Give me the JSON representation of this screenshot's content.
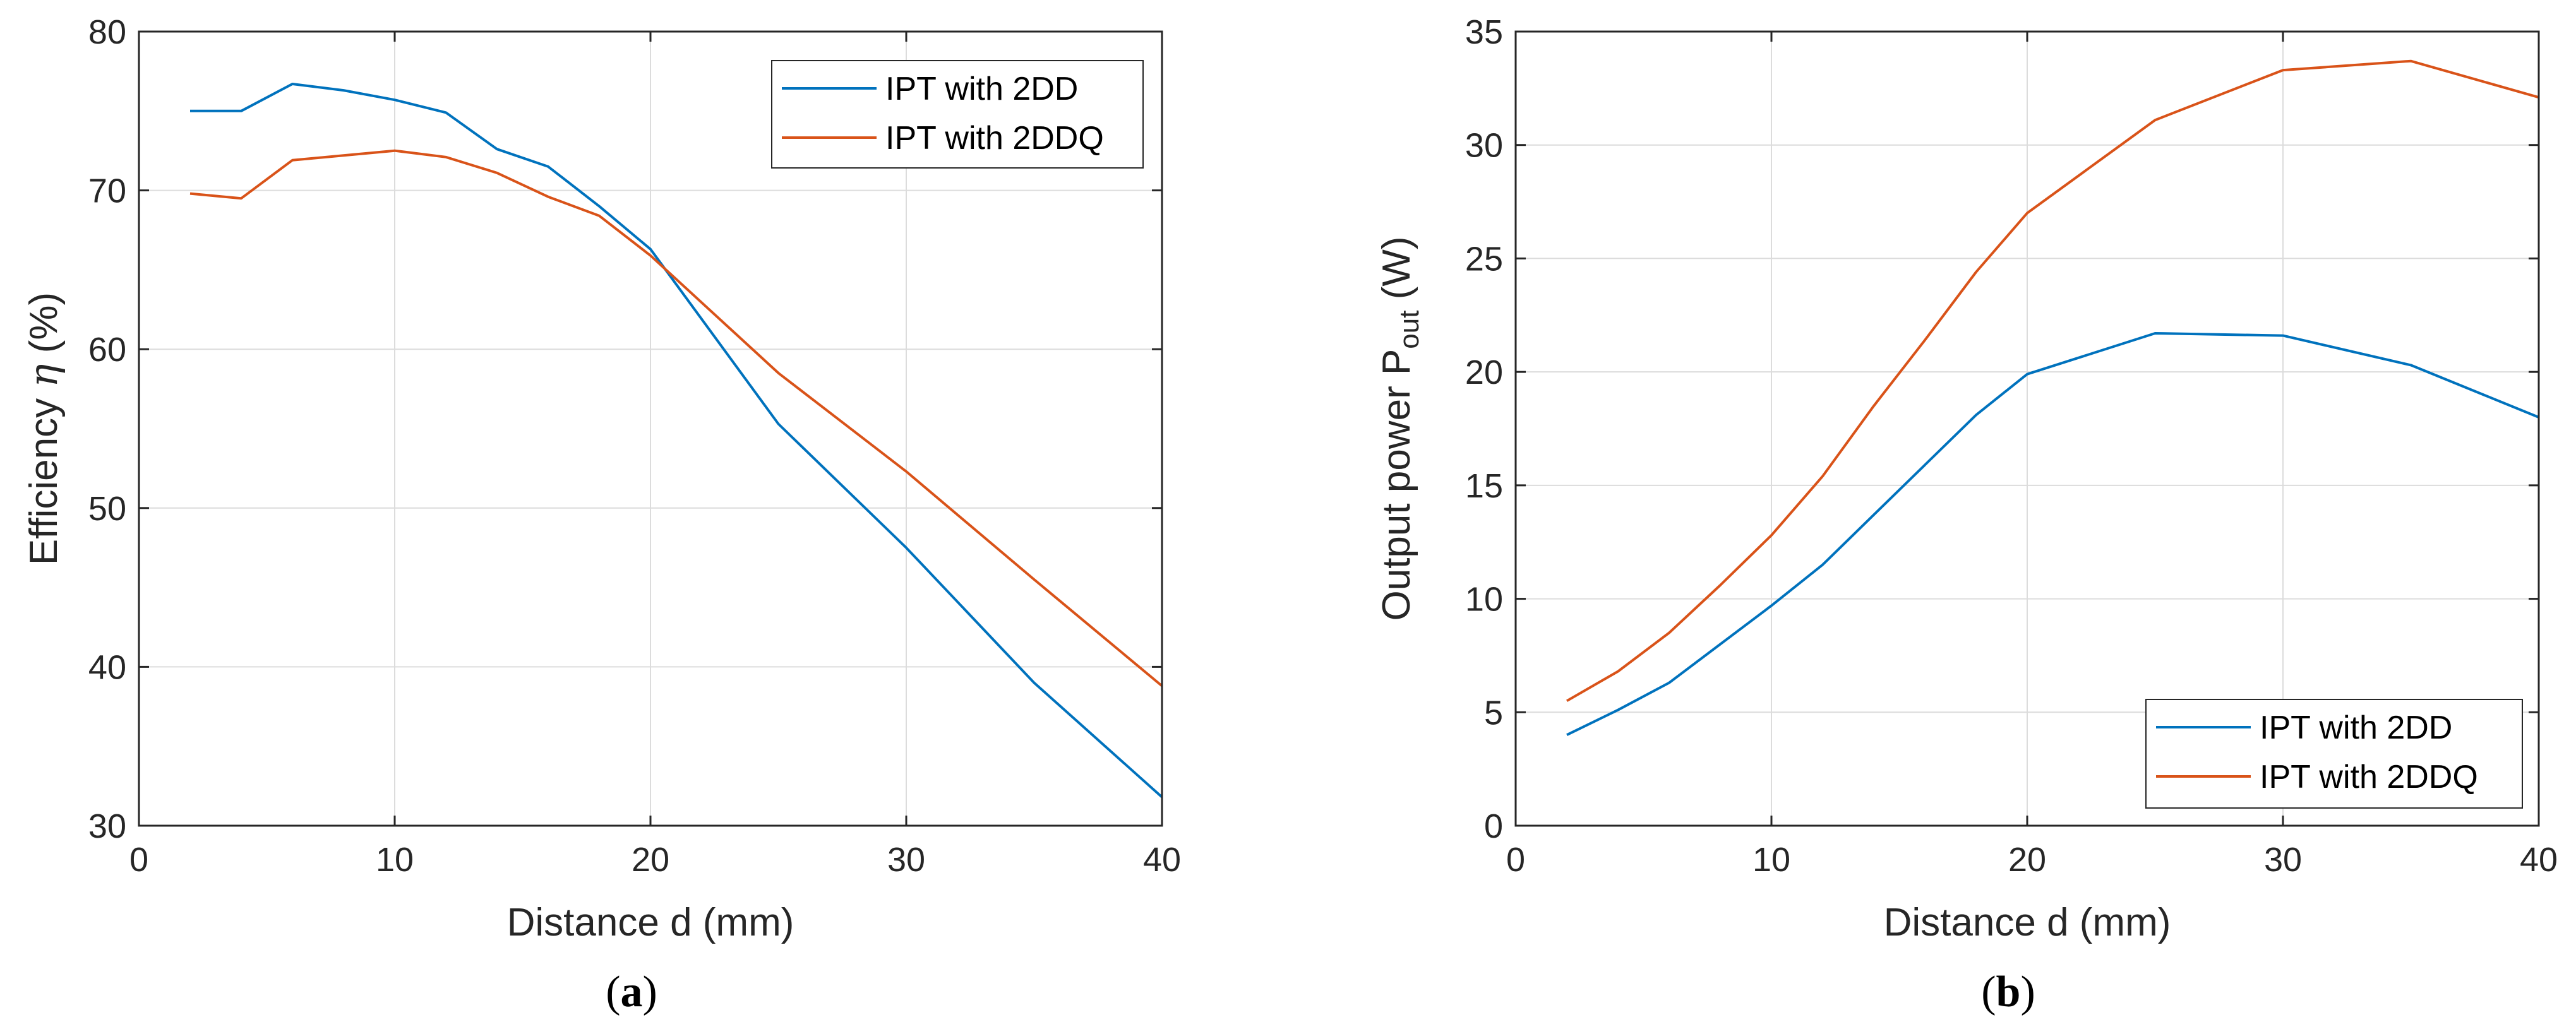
{
  "colors": {
    "series1": "#0072BD",
    "series2": "#D95319",
    "axis": "#262626",
    "grid": "#dcdcdc"
  },
  "chart_data": [
    {
      "id": "a",
      "type": "line",
      "sublabel_pre": "(",
      "sublabel_letter": "a",
      "sublabel_post": ")",
      "xlabel": "Distance d (mm)",
      "ylabel_pre": "Efficiency ",
      "ylabel_symbol": "η",
      "ylabel_post": " (%)",
      "xlim": [
        0,
        40
      ],
      "ylim": [
        30,
        80
      ],
      "xticks": [
        0,
        10,
        20,
        30,
        40
      ],
      "yticks": [
        30,
        40,
        50,
        60,
        70,
        80
      ],
      "grid": true,
      "legend_position": "top-right",
      "series": [
        {
          "name": "IPT with 2DD",
          "x": [
            2,
            4,
            6,
            8,
            10,
            12,
            14,
            16,
            18,
            20,
            25,
            30,
            35,
            40
          ],
          "y": [
            75,
            75,
            76.7,
            76.3,
            75.7,
            74.9,
            72.6,
            71.5,
            69,
            66.3,
            55.3,
            47.5,
            39,
            31.8
          ]
        },
        {
          "name": "IPT with 2DDQ",
          "x": [
            2,
            4,
            6,
            8,
            10,
            12,
            14,
            16,
            18,
            20,
            25,
            30,
            35,
            40
          ],
          "y": [
            69.8,
            69.5,
            71.9,
            72.2,
            72.5,
            72.1,
            71.1,
            69.6,
            68.4,
            65.9,
            58.5,
            52.3,
            45.5,
            38.8
          ]
        }
      ]
    },
    {
      "id": "b",
      "type": "line",
      "sublabel_pre": "(",
      "sublabel_letter": "b",
      "sublabel_post": ")",
      "xlabel": "Distance d (mm)",
      "ylabel_pre": "Output power P",
      "ylabel_sub": "out",
      "ylabel_post": " (W)",
      "xlim": [
        0,
        40
      ],
      "ylim": [
        0,
        35
      ],
      "xticks": [
        0,
        10,
        20,
        30,
        40
      ],
      "yticks": [
        0,
        5,
        10,
        15,
        20,
        25,
        30,
        35
      ],
      "grid": true,
      "legend_position": "bottom-right",
      "series": [
        {
          "name": "IPT with 2DD",
          "x": [
            2,
            4,
            6,
            8,
            10,
            12,
            14,
            16,
            18,
            20,
            25,
            30,
            35,
            40
          ],
          "y": [
            4,
            5.1,
            6.3,
            8,
            9.7,
            11.5,
            13.7,
            15.9,
            18.1,
            19.9,
            21.7,
            21.6,
            20.3,
            18
          ]
        },
        {
          "name": "IPT with 2DDQ",
          "x": [
            2,
            4,
            6,
            8,
            10,
            12,
            14,
            16,
            18,
            20,
            25,
            30,
            35,
            40
          ],
          "y": [
            5.5,
            6.8,
            8.5,
            10.6,
            12.8,
            15.4,
            18.5,
            21.4,
            24.4,
            27,
            31.1,
            33.3,
            33.7,
            32.1
          ]
        }
      ]
    }
  ]
}
